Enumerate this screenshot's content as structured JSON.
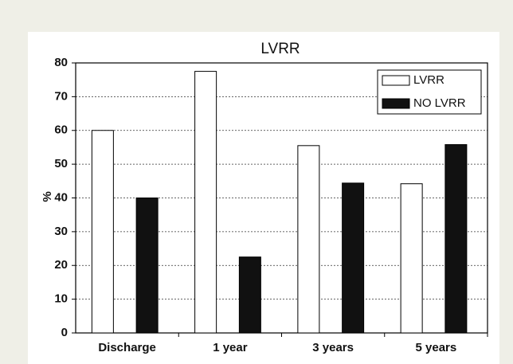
{
  "chart_data": {
    "type": "bar",
    "title": "LVRR",
    "y_label": "%",
    "categories": [
      "Discharge",
      "1 year",
      "3 years",
      "5 years"
    ],
    "series": [
      {
        "name": "LVRR",
        "color": "#ffffff",
        "values": [
          60,
          77.5,
          55.5,
          44.2
        ]
      },
      {
        "name": "NO LVRR",
        "color": "#111111",
        "values": [
          40,
          22.5,
          44.4,
          55.8
        ]
      }
    ],
    "ylim": [
      0,
      80
    ],
    "yticks": [
      0,
      10,
      20,
      30,
      40,
      50,
      60,
      70,
      80
    ],
    "grid": true,
    "legend": "upper right"
  }
}
